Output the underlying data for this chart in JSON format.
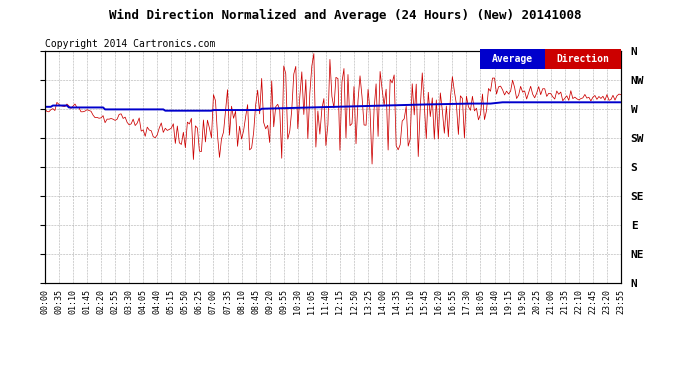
{
  "title": "Wind Direction Normalized and Average (24 Hours) (New) 20141008",
  "copyright": "Copyright 2014 Cartronics.com",
  "background_color": "#ffffff",
  "plot_bg_color": "#ffffff",
  "grid_color": "#999999",
  "y_labels": [
    "N",
    "NW",
    "W",
    "SW",
    "S",
    "SE",
    "E",
    "NE",
    "N"
  ],
  "y_values": [
    360,
    315,
    270,
    225,
    180,
    135,
    90,
    45,
    0
  ],
  "direction_color": "#cc0000",
  "average_color": "#0000cc",
  "legend_avg_bg": "#0000cc",
  "legend_dir_bg": "#cc0000",
  "legend_avg_text": "Average",
  "legend_dir_text": "Direction",
  "ylim": [
    0,
    360
  ],
  "n_points": 288,
  "minutes_step": 5,
  "tick_every": 7,
  "title_fontsize": 9,
  "copyright_fontsize": 7,
  "xlabel_fontsize": 6,
  "ylabel_fontsize": 8
}
